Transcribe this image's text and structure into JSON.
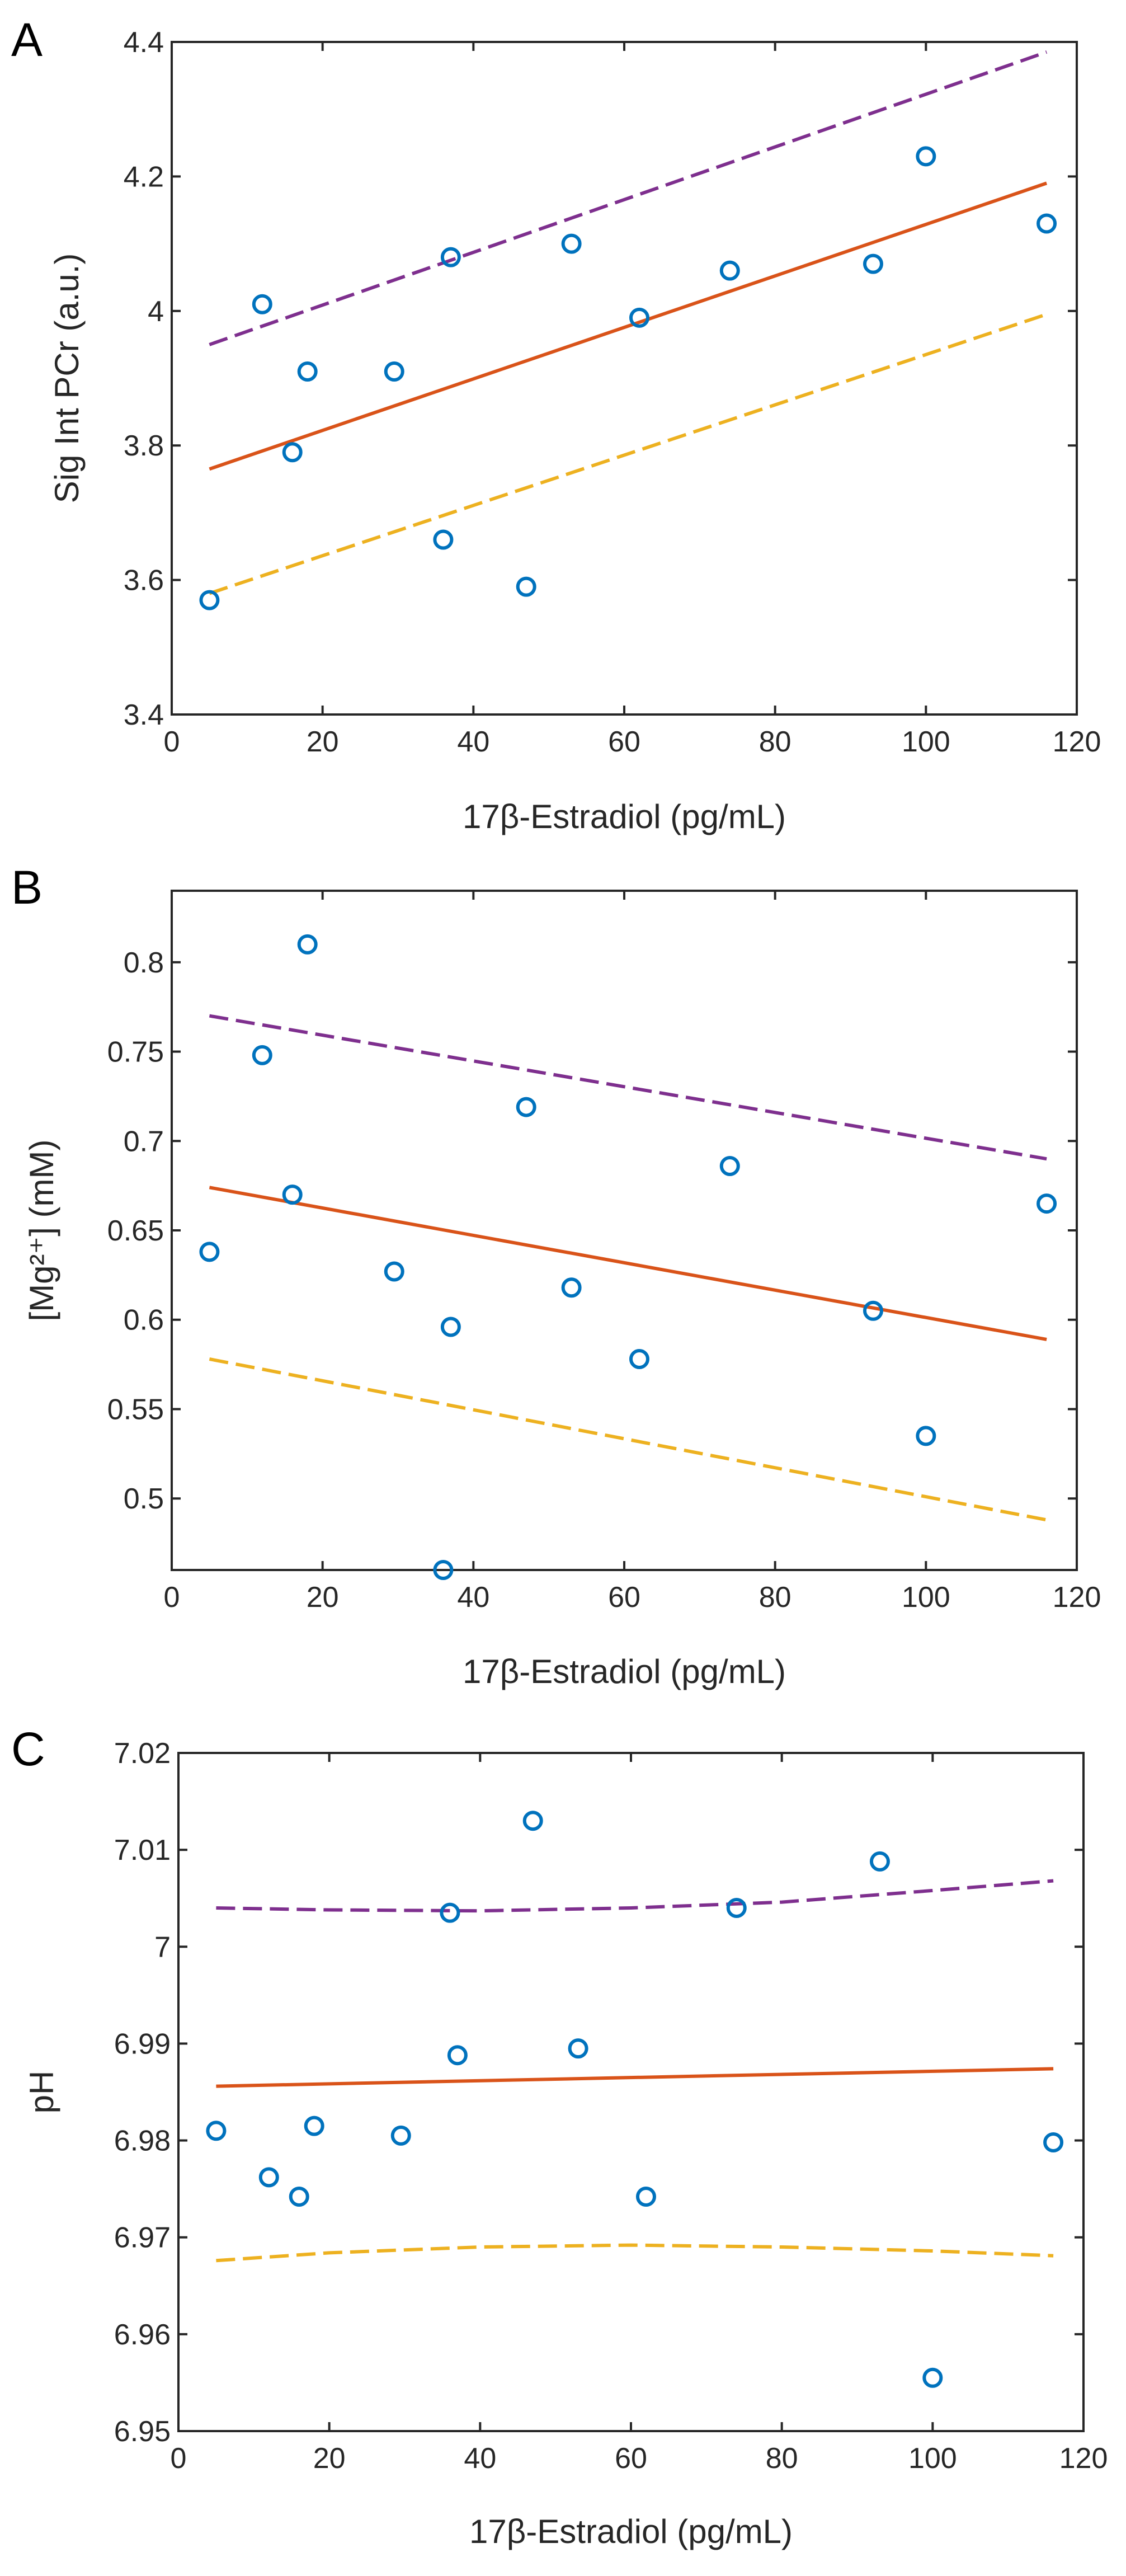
{
  "chart_data": [
    {
      "panel": "A",
      "type": "scatter",
      "xlabel": "17β-Estradiol (pg/mL)",
      "ylabel": "Sig Int PCr    (a.u.)",
      "xlim": [
        0,
        120
      ],
      "ylim": [
        3.4,
        4.4
      ],
      "xticks": [
        0,
        20,
        40,
        60,
        80,
        100,
        120
      ],
      "yticks": [
        3.4,
        3.6,
        3.8,
        4.0,
        4.2,
        4.4
      ],
      "ytick_labels": [
        "3.4",
        "3.6",
        "3.8",
        "4",
        "4.2",
        "4.4"
      ],
      "points": {
        "x": [
          5,
          12,
          16,
          18,
          29.5,
          36,
          37,
          47,
          53,
          62,
          74,
          93,
          100,
          116
        ],
        "y": [
          3.57,
          4.01,
          3.79,
          3.91,
          3.91,
          3.66,
          4.08,
          3.59,
          4.1,
          3.99,
          4.06,
          4.07,
          4.23,
          4.13
        ]
      },
      "fit": {
        "x": [
          5,
          116
        ],
        "y": [
          3.765,
          4.19
        ]
      },
      "upper_bound": {
        "x": [
          5,
          116
        ],
        "y": [
          3.95,
          4.385
        ]
      },
      "lower_bound": {
        "x": [
          5,
          116
        ],
        "y": [
          3.58,
          3.995
        ]
      },
      "colors": {
        "points": "#0072BD",
        "fit": "#D95319",
        "upper": "#7E2F8E",
        "lower": "#EDB120"
      }
    },
    {
      "panel": "B",
      "type": "scatter",
      "xlabel": "17β-Estradiol (pg/mL)",
      "ylabel": "[Mg²⁺] (mM)",
      "xlim": [
        0,
        120
      ],
      "ylim": [
        0.46,
        0.84
      ],
      "xticks": [
        0,
        20,
        40,
        60,
        80,
        100,
        120
      ],
      "yticks": [
        0.5,
        0.55,
        0.6,
        0.65,
        0.7,
        0.75,
        0.8
      ],
      "ytick_labels": [
        "0.5",
        "0.55",
        "0.6",
        "0.65",
        "0.7",
        "0.75",
        "0.8"
      ],
      "points": {
        "x": [
          5,
          12,
          16,
          18,
          29.5,
          36,
          37,
          47,
          53,
          62,
          74,
          93,
          100,
          116
        ],
        "y": [
          0.638,
          0.748,
          0.67,
          0.81,
          0.627,
          0.46,
          0.596,
          0.719,
          0.618,
          0.578,
          0.686,
          0.605,
          0.535,
          0.665
        ]
      },
      "fit": {
        "x": [
          5,
          116
        ],
        "y": [
          0.674,
          0.589
        ]
      },
      "upper_bound": {
        "x": [
          5,
          116
        ],
        "y": [
          0.77,
          0.69
        ]
      },
      "lower_bound": {
        "x": [
          5,
          116
        ],
        "y": [
          0.578,
          0.488
        ]
      },
      "colors": {
        "points": "#0072BD",
        "fit": "#D95319",
        "upper": "#7E2F8E",
        "lower": "#EDB120"
      }
    },
    {
      "panel": "C",
      "type": "scatter",
      "xlabel": "17β-Estradiol (pg/mL)",
      "ylabel": "pH",
      "xlim": [
        0,
        120
      ],
      "ylim": [
        6.95,
        7.02
      ],
      "xticks": [
        0,
        20,
        40,
        60,
        80,
        100,
        120
      ],
      "yticks": [
        6.95,
        6.96,
        6.97,
        6.98,
        6.99,
        7.0,
        7.01,
        7.02
      ],
      "ytick_labels": [
        "6.95",
        "6.96",
        "6.97",
        "6.98",
        "6.99",
        "7",
        "7.01",
        "7.02"
      ],
      "points": {
        "x": [
          5,
          12,
          16,
          18,
          29.5,
          36,
          37,
          47,
          53,
          62,
          74,
          93,
          100,
          116
        ],
        "y": [
          6.981,
          6.9762,
          6.9742,
          6.9815,
          6.9805,
          7.0035,
          6.9888,
          7.013,
          6.9895,
          6.9742,
          7.004,
          7.0088,
          6.9555,
          6.9798
        ]
      },
      "fit": {
        "x": [
          5,
          116
        ],
        "y": [
          6.9856,
          6.9874
        ]
      },
      "upper_bound": {
        "x": [
          5,
          20,
          40,
          60,
          80,
          100,
          116
        ],
        "y": [
          7.004,
          7.0038,
          7.0037,
          7.004,
          7.0046,
          7.0058,
          7.0068
        ]
      },
      "lower_bound": {
        "x": [
          5,
          20,
          40,
          60,
          80,
          100,
          116
        ],
        "y": [
          6.9676,
          6.9684,
          6.969,
          6.9692,
          6.969,
          6.9686,
          6.9681
        ]
      },
      "colors": {
        "points": "#0072BD",
        "fit": "#D95319",
        "upper": "#7E2F8E",
        "lower": "#EDB120"
      }
    }
  ]
}
